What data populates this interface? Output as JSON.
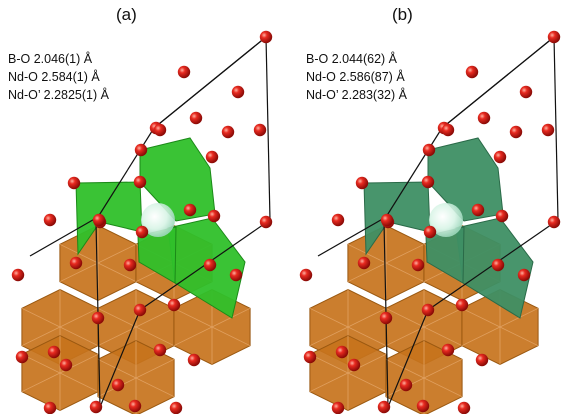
{
  "panels": [
    {
      "label": "(a)",
      "bonds": [
        "B-O  2.046(1) Å",
        "Nd-O 2.584(1) Å",
        "Nd-O’ 2.2825(1) Å"
      ],
      "octahedra_color": "#2fc02a",
      "octahedra_edge": "#1b8a18"
    },
    {
      "label": "(b)",
      "bonds": [
        "B-O    2.044(62) Å",
        "Nd-O  2.586(87) Å",
        "Nd-O’ 2.283(32) Å"
      ],
      "octahedra_color": "#3e8f64",
      "octahedra_edge": "#2a6a48"
    }
  ],
  "colors": {
    "oxygen": "#e01818",
    "hex_layer": "#c7731c",
    "hex_edge": "#9a5810",
    "cell_edge": "#111111",
    "center_atom": "#bfe8d4"
  }
}
